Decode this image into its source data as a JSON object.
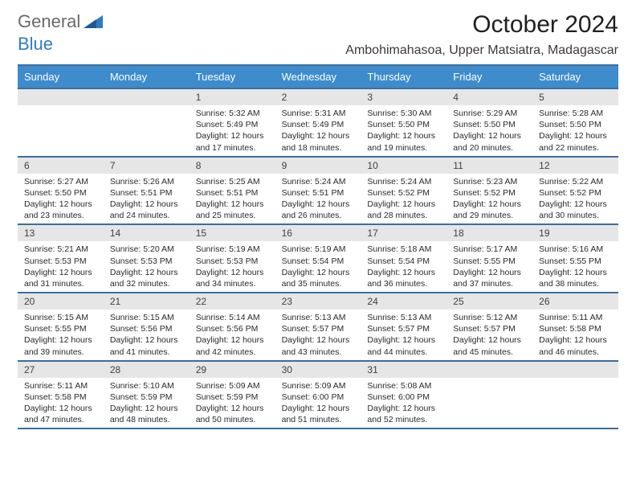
{
  "logo": {
    "part1": "General",
    "part2": "Blue"
  },
  "title": "October 2024",
  "subtitle": "Ambohimahasoa, Upper Matsiatra, Madagascar",
  "colors": {
    "header_bg": "#3e8ccc",
    "header_border": "#3a6f9e",
    "daynum_bg": "#e6e6e6",
    "logo_gray": "#6a6a6a",
    "logo_blue": "#2f7bbf"
  },
  "daynames": [
    "Sunday",
    "Monday",
    "Tuesday",
    "Wednesday",
    "Thursday",
    "Friday",
    "Saturday"
  ],
  "weeks": [
    [
      {
        "empty": true
      },
      {
        "empty": true
      },
      {
        "num": "1",
        "sunrise": "5:32 AM",
        "sunset": "5:49 PM",
        "daylight": "12 hours and 17 minutes."
      },
      {
        "num": "2",
        "sunrise": "5:31 AM",
        "sunset": "5:49 PM",
        "daylight": "12 hours and 18 minutes."
      },
      {
        "num": "3",
        "sunrise": "5:30 AM",
        "sunset": "5:50 PM",
        "daylight": "12 hours and 19 minutes."
      },
      {
        "num": "4",
        "sunrise": "5:29 AM",
        "sunset": "5:50 PM",
        "daylight": "12 hours and 20 minutes."
      },
      {
        "num": "5",
        "sunrise": "5:28 AM",
        "sunset": "5:50 PM",
        "daylight": "12 hours and 22 minutes."
      }
    ],
    [
      {
        "num": "6",
        "sunrise": "5:27 AM",
        "sunset": "5:50 PM",
        "daylight": "12 hours and 23 minutes."
      },
      {
        "num": "7",
        "sunrise": "5:26 AM",
        "sunset": "5:51 PM",
        "daylight": "12 hours and 24 minutes."
      },
      {
        "num": "8",
        "sunrise": "5:25 AM",
        "sunset": "5:51 PM",
        "daylight": "12 hours and 25 minutes."
      },
      {
        "num": "9",
        "sunrise": "5:24 AM",
        "sunset": "5:51 PM",
        "daylight": "12 hours and 26 minutes."
      },
      {
        "num": "10",
        "sunrise": "5:24 AM",
        "sunset": "5:52 PM",
        "daylight": "12 hours and 28 minutes."
      },
      {
        "num": "11",
        "sunrise": "5:23 AM",
        "sunset": "5:52 PM",
        "daylight": "12 hours and 29 minutes."
      },
      {
        "num": "12",
        "sunrise": "5:22 AM",
        "sunset": "5:52 PM",
        "daylight": "12 hours and 30 minutes."
      }
    ],
    [
      {
        "num": "13",
        "sunrise": "5:21 AM",
        "sunset": "5:53 PM",
        "daylight": "12 hours and 31 minutes."
      },
      {
        "num": "14",
        "sunrise": "5:20 AM",
        "sunset": "5:53 PM",
        "daylight": "12 hours and 32 minutes."
      },
      {
        "num": "15",
        "sunrise": "5:19 AM",
        "sunset": "5:53 PM",
        "daylight": "12 hours and 34 minutes."
      },
      {
        "num": "16",
        "sunrise": "5:19 AM",
        "sunset": "5:54 PM",
        "daylight": "12 hours and 35 minutes."
      },
      {
        "num": "17",
        "sunrise": "5:18 AM",
        "sunset": "5:54 PM",
        "daylight": "12 hours and 36 minutes."
      },
      {
        "num": "18",
        "sunrise": "5:17 AM",
        "sunset": "5:55 PM",
        "daylight": "12 hours and 37 minutes."
      },
      {
        "num": "19",
        "sunrise": "5:16 AM",
        "sunset": "5:55 PM",
        "daylight": "12 hours and 38 minutes."
      }
    ],
    [
      {
        "num": "20",
        "sunrise": "5:15 AM",
        "sunset": "5:55 PM",
        "daylight": "12 hours and 39 minutes."
      },
      {
        "num": "21",
        "sunrise": "5:15 AM",
        "sunset": "5:56 PM",
        "daylight": "12 hours and 41 minutes."
      },
      {
        "num": "22",
        "sunrise": "5:14 AM",
        "sunset": "5:56 PM",
        "daylight": "12 hours and 42 minutes."
      },
      {
        "num": "23",
        "sunrise": "5:13 AM",
        "sunset": "5:57 PM",
        "daylight": "12 hours and 43 minutes."
      },
      {
        "num": "24",
        "sunrise": "5:13 AM",
        "sunset": "5:57 PM",
        "daylight": "12 hours and 44 minutes."
      },
      {
        "num": "25",
        "sunrise": "5:12 AM",
        "sunset": "5:57 PM",
        "daylight": "12 hours and 45 minutes."
      },
      {
        "num": "26",
        "sunrise": "5:11 AM",
        "sunset": "5:58 PM",
        "daylight": "12 hours and 46 minutes."
      }
    ],
    [
      {
        "num": "27",
        "sunrise": "5:11 AM",
        "sunset": "5:58 PM",
        "daylight": "12 hours and 47 minutes."
      },
      {
        "num": "28",
        "sunrise": "5:10 AM",
        "sunset": "5:59 PM",
        "daylight": "12 hours and 48 minutes."
      },
      {
        "num": "29",
        "sunrise": "5:09 AM",
        "sunset": "5:59 PM",
        "daylight": "12 hours and 50 minutes."
      },
      {
        "num": "30",
        "sunrise": "5:09 AM",
        "sunset": "6:00 PM",
        "daylight": "12 hours and 51 minutes."
      },
      {
        "num": "31",
        "sunrise": "5:08 AM",
        "sunset": "6:00 PM",
        "daylight": "12 hours and 52 minutes."
      },
      {
        "empty": true
      },
      {
        "empty": true
      }
    ]
  ],
  "labels": {
    "sunrise": "Sunrise:",
    "sunset": "Sunset:",
    "daylight": "Daylight:"
  }
}
